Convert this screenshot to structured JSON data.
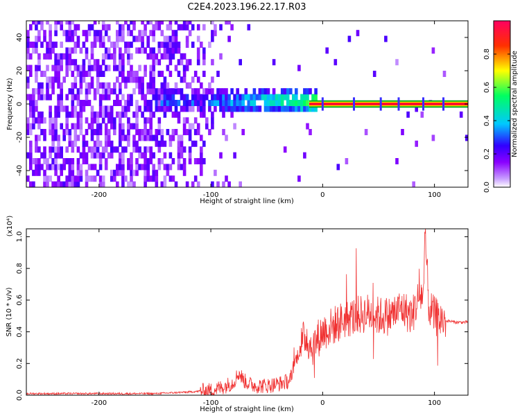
{
  "title": "C2E4.2023.196.22.17.R03",
  "chart_data": [
    {
      "type": "heatmap",
      "xlabel": "Height of straight line (km)",
      "ylabel": "Frequency (Hz)",
      "xlim": [
        -265,
        130
      ],
      "ylim": [
        -50,
        50
      ],
      "x_ticks": [
        -200,
        -100,
        0,
        100
      ],
      "y_ticks": [
        -40,
        -20,
        0,
        20,
        40
      ],
      "colorbar": {
        "label": "Normalized spectral amplitude",
        "range": [
          0,
          1
        ],
        "ticks": [
          0.0,
          0.2,
          0.4,
          0.6,
          0.8
        ],
        "colors": [
          "#ffffff",
          "#8a00ff",
          "#3000ff",
          "#00c8ff",
          "#00ff60",
          "#ffff00",
          "#ff3000",
          "#ff0060"
        ]
      },
      "features": {
        "broadband_noise_region_km": [
          -265,
          -95
        ],
        "signal_frequency_hz": 0,
        "tone_start_km": -12,
        "tone_band_hz": [
          -2,
          2
        ]
      }
    },
    {
      "type": "line",
      "xlabel": "Height of straight line (km)",
      "ylabel": "SNR (10 * v/v)",
      "y_multiplier_label": "(x10⁴)",
      "xlim": [
        -265,
        130
      ],
      "ylim": [
        0,
        1.05
      ],
      "x_ticks": [
        -200,
        -100,
        0,
        100
      ],
      "y_ticks": [
        0.0,
        0.2,
        0.4,
        0.6,
        0.8,
        1.0
      ],
      "color": "#f03030",
      "series": [
        {
          "x": [
            -265,
            -200,
            -150,
            -120,
            -100,
            -90,
            -80,
            -75,
            -70,
            -65,
            -60,
            -50,
            -40,
            -30,
            -25,
            -20,
            -15,
            -10,
            -5,
            0,
            10,
            20,
            30,
            40,
            50,
            60,
            70,
            80,
            85,
            90,
            92,
            95,
            100,
            105,
            110,
            120,
            130
          ],
          "values": [
            0.01,
            0.01,
            0.01,
            0.02,
            0.03,
            0.05,
            0.08,
            0.14,
            0.09,
            0.07,
            0.06,
            0.06,
            0.07,
            0.09,
            0.2,
            0.3,
            0.38,
            0.3,
            0.35,
            0.4,
            0.44,
            0.48,
            0.5,
            0.52,
            0.5,
            0.5,
            0.55,
            0.5,
            0.6,
            0.65,
            1.0,
            0.55,
            0.5,
            0.48,
            0.47,
            0.46,
            0.46
          ]
        }
      ]
    }
  ]
}
